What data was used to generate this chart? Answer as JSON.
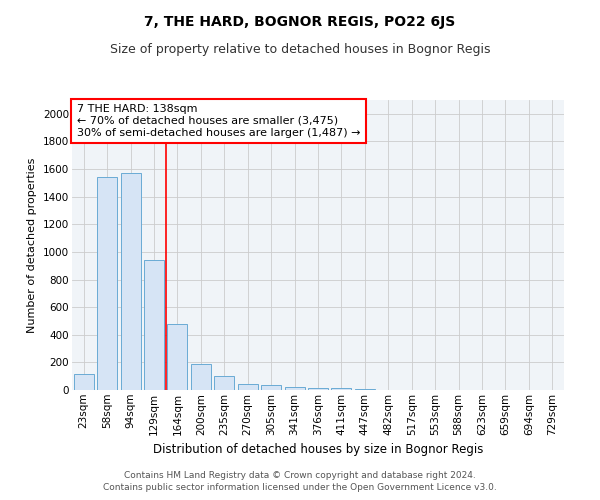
{
  "title": "7, THE HARD, BOGNOR REGIS, PO22 6JS",
  "subtitle": "Size of property relative to detached houses in Bognor Regis",
  "xlabel": "Distribution of detached houses by size in Bognor Regis",
  "ylabel": "Number of detached properties",
  "footer_line1": "Contains HM Land Registry data © Crown copyright and database right 2024.",
  "footer_line2": "Contains public sector information licensed under the Open Government Licence v3.0.",
  "categories": [
    "23sqm",
    "58sqm",
    "94sqm",
    "129sqm",
    "164sqm",
    "200sqm",
    "235sqm",
    "270sqm",
    "305sqm",
    "341sqm",
    "376sqm",
    "411sqm",
    "447sqm",
    "482sqm",
    "517sqm",
    "553sqm",
    "588sqm",
    "623sqm",
    "659sqm",
    "694sqm",
    "729sqm"
  ],
  "values": [
    115,
    1540,
    1570,
    945,
    480,
    185,
    100,
    42,
    35,
    22,
    15,
    12,
    5,
    3,
    2,
    1,
    1,
    0,
    0,
    0,
    0
  ],
  "bar_color": "#d6e4f5",
  "bar_edge_color": "#6aaad4",
  "red_line_x": 3.5,
  "annotation_line1": "7 THE HARD: 138sqm",
  "annotation_line2": "← 70% of detached houses are smaller (3,475)",
  "annotation_line3": "30% of semi-detached houses are larger (1,487) →",
  "ylim": [
    0,
    2100
  ],
  "yticks": [
    0,
    200,
    400,
    600,
    800,
    1000,
    1200,
    1400,
    1600,
    1800,
    2000
  ],
  "grid_color": "#cccccc",
  "background_color": "#f0f4f8",
  "title_fontsize": 10,
  "subtitle_fontsize": 9,
  "ylabel_fontsize": 8,
  "xlabel_fontsize": 8.5,
  "tick_fontsize": 7.5,
  "annotation_fontsize": 8,
  "footer_fontsize": 6.5
}
